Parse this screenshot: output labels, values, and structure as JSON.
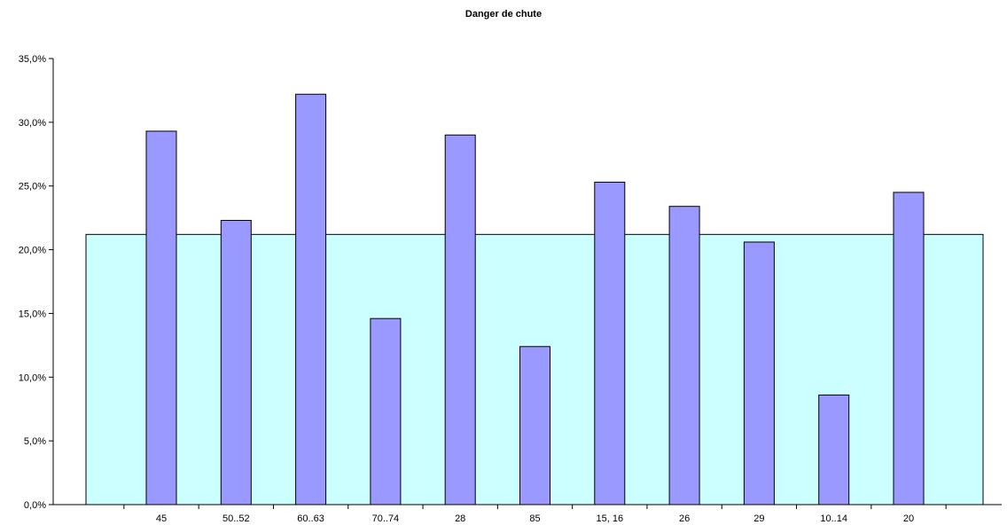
{
  "chart_data": {
    "type": "bar",
    "title": "Danger de chute",
    "xlabel": "",
    "ylabel": "",
    "categories": [
      "45",
      "50..52",
      "60..63",
      "70..74",
      "28",
      "85",
      "15, 16",
      "26",
      "29",
      "10..14",
      "20"
    ],
    "series": [
      {
        "values": [
          29.3,
          22.3,
          32.2,
          14.6,
          29.0,
          12.4,
          25.3,
          23.4,
          20.6,
          8.6,
          24.5
        ]
      }
    ],
    "reference_area": {
      "value": 21.2,
      "color": "#ccffff"
    },
    "ylim": [
      0,
      35
    ],
    "yticks": [
      {
        "value": 0,
        "label": "0,0%"
      },
      {
        "value": 5,
        "label": "5,0%"
      },
      {
        "value": 10,
        "label": "10,0%"
      },
      {
        "value": 15,
        "label": "15,0%"
      },
      {
        "value": 20,
        "label": "20,0%"
      },
      {
        "value": 25,
        "label": "25,0%"
      },
      {
        "value": 30,
        "label": "30,0%"
      },
      {
        "value": 35,
        "label": "35,0%"
      }
    ],
    "bar_color": "#9999ff",
    "grid": false,
    "legend": "none"
  }
}
